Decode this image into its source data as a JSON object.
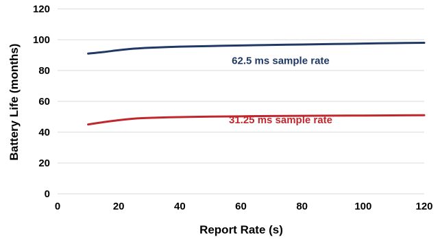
{
  "chart_data": {
    "type": "line",
    "title": "",
    "xlabel": "Report Rate (s)",
    "ylabel": "Battery Life (months)",
    "xlim": [
      0,
      120
    ],
    "ylim": [
      0,
      120
    ],
    "xticks": [
      0,
      20,
      40,
      60,
      80,
      100,
      120
    ],
    "yticks": [
      0,
      20,
      40,
      60,
      80,
      100,
      120
    ],
    "grid": "horizontal",
    "legend": "none",
    "series": [
      {
        "label": "62.5 ms sample rate",
        "color": "#1f3864",
        "x": [
          10,
          15,
          20,
          25,
          30,
          40,
          50,
          60,
          70,
          80,
          90,
          100,
          110,
          120
        ],
        "y": [
          91,
          92,
          93.2,
          94.2,
          94.8,
          95.5,
          95.9,
          96.3,
          96.6,
          96.9,
          97.2,
          97.5,
          97.8,
          98
        ]
      },
      {
        "label": "31.25 ms sample rate",
        "color": "#c0262c",
        "x": [
          10,
          15,
          20,
          25,
          30,
          40,
          50,
          60,
          70,
          80,
          90,
          100,
          110,
          120
        ],
        "y": [
          45,
          46.5,
          47.8,
          48.8,
          49.3,
          49.8,
          50.1,
          50.3,
          50.5,
          50.6,
          50.7,
          50.8,
          50.9,
          51
        ]
      }
    ]
  }
}
